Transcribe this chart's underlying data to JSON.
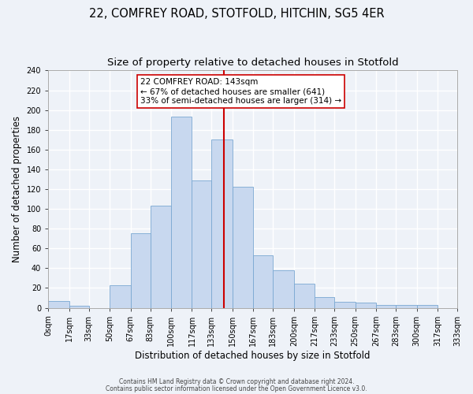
{
  "title": "22, COMFREY ROAD, STOTFOLD, HITCHIN, SG5 4ER",
  "subtitle": "Size of property relative to detached houses in Stotfold",
  "xlabel": "Distribution of detached houses by size in Stotfold",
  "ylabel": "Number of detached properties",
  "bin_edges": [
    0,
    17,
    33,
    50,
    67,
    83,
    100,
    117,
    133,
    150,
    167,
    183,
    200,
    217,
    233,
    250,
    267,
    283,
    300,
    317,
    333
  ],
  "bin_heights": [
    7,
    2,
    0,
    23,
    75,
    103,
    193,
    129,
    170,
    122,
    53,
    38,
    24,
    11,
    6,
    5,
    3,
    3,
    3,
    0
  ],
  "bar_color": "#c8d8ef",
  "bar_edgecolor": "#7aa8d2",
  "property_size": 143,
  "vline_color": "#cc0000",
  "annotation_text": "22 COMFREY ROAD: 143sqm\n← 67% of detached houses are smaller (641)\n33% of semi-detached houses are larger (314) →",
  "annotation_box_edgecolor": "#cc0000",
  "annotation_box_facecolor": "#ffffff",
  "ylim": [
    0,
    240
  ],
  "xlim": [
    0,
    333
  ],
  "yticks": [
    0,
    20,
    40,
    60,
    80,
    100,
    120,
    140,
    160,
    180,
    200,
    220,
    240
  ],
  "xtick_labels": [
    "0sqm",
    "17sqm",
    "33sqm",
    "50sqm",
    "67sqm",
    "83sqm",
    "100sqm",
    "117sqm",
    "133sqm",
    "150sqm",
    "167sqm",
    "183sqm",
    "200sqm",
    "217sqm",
    "233sqm",
    "250sqm",
    "267sqm",
    "283sqm",
    "300sqm",
    "317sqm",
    "333sqm"
  ],
  "footer1": "Contains HM Land Registry data © Crown copyright and database right 2024.",
  "footer2": "Contains public sector information licensed under the Open Government Licence v3.0.",
  "background_color": "#eef2f8",
  "grid_color": "#ffffff",
  "title_fontsize": 10.5,
  "subtitle_fontsize": 9.5,
  "xlabel_fontsize": 8.5,
  "ylabel_fontsize": 8.5,
  "tick_fontsize": 7,
  "footer_fontsize": 5.5,
  "annot_fontsize": 7.5
}
